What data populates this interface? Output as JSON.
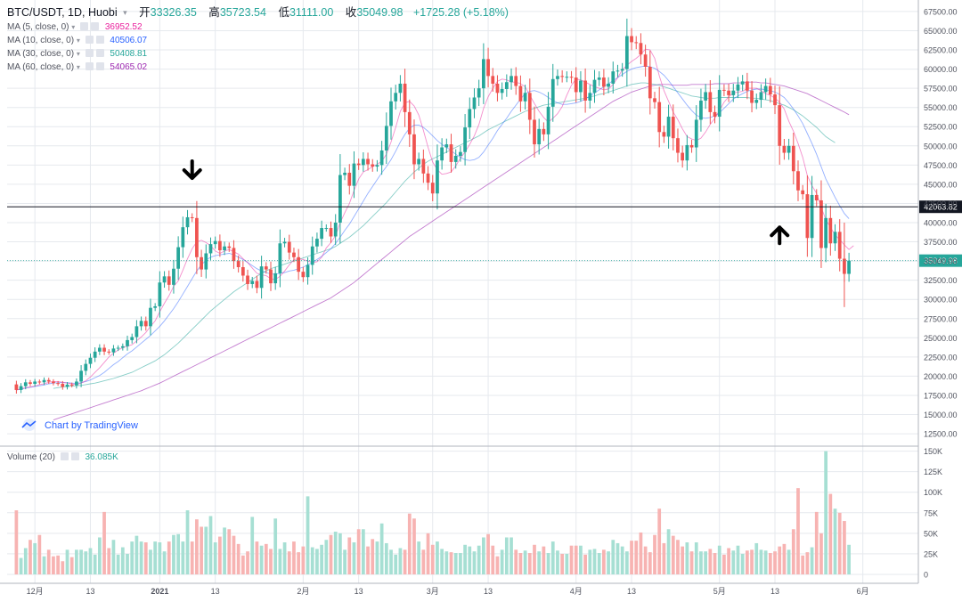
{
  "header": {
    "symbol": "BTC/USDT, 1D, Huobi",
    "open_label": "开",
    "open_value": "33326.35",
    "high_label": "高",
    "high_value": "35723.54",
    "low_label": "低",
    "low_value": "31111.00",
    "close_label": "收",
    "close_value": "35049.98",
    "change": "+1725.28 (+5.18%)"
  },
  "indicators": [
    {
      "label": "MA (5, close, 0)",
      "value": "36952.52",
      "color": "#e91e9c"
    },
    {
      "label": "MA (10, close, 0)",
      "value": "40506.07",
      "color": "#2962ff"
    },
    {
      "label": "MA (30, close, 0)",
      "value": "50408.81",
      "color": "#26a69a"
    },
    {
      "label": "MA (60, close, 0)",
      "value": "54065.02",
      "color": "#9c27b0"
    }
  ],
  "volume_legend": {
    "label": "Volume (20)",
    "value": "36.085K"
  },
  "brand": "Chart by TradingView",
  "colors": {
    "up": "#26a69a",
    "down": "#ef5350",
    "vol_up": "#a6dfd3",
    "vol_down": "#f7b3b2",
    "grid": "#e6e9ee",
    "axis_text": "#50535e"
  },
  "chart_data": {
    "type": "candlestick",
    "title": "BTC/USDT, 1D, Huobi",
    "price_ticks": [
      "67500.00",
      "65000.00",
      "62500.00",
      "60000.00",
      "57500.00",
      "55000.00",
      "52500.00",
      "50000.00",
      "47500.00",
      "45000.00",
      "42500.00",
      "40000.00",
      "37500.00",
      "35000.00",
      "32500.00",
      "30000.00",
      "27500.00",
      "25000.00",
      "22500.00",
      "20000.00",
      "17500.00",
      "15000.00",
      "12500.00"
    ],
    "price_range": [
      11000,
      69000
    ],
    "volume_ticks": [
      "150K",
      "125K",
      "100K",
      "75K",
      "50K",
      "25K",
      "0"
    ],
    "volume_range": [
      0,
      155000
    ],
    "x_ticks": [
      "12月",
      "13",
      "2021",
      "13",
      "2月",
      "13",
      "3月",
      "13",
      "4月",
      "13",
      "5月",
      "13",
      "6月"
    ],
    "x_tick_days": [
      4,
      16,
      31,
      43,
      62,
      74,
      90,
      102,
      121,
      133,
      152,
      164,
      183
    ],
    "day_range": [
      -2,
      195
    ],
    "horizontal_line": {
      "value": 42063.82,
      "label": "42063.82"
    },
    "current_price": {
      "value": 35049.98,
      "label": "35049.98"
    },
    "annotations": [
      {
        "type": "arrow-down",
        "day": 38,
        "price": 48000
      },
      {
        "type": "arrow-up",
        "day": 165,
        "price": 39500
      }
    ],
    "close": [
      18200,
      18700,
      19200,
      19000,
      19300,
      19200,
      19500,
      19300,
      19100,
      19000,
      18600,
      18900,
      18800,
      19300,
      20700,
      21600,
      22400,
      23200,
      23700,
      23200,
      23100,
      23600,
      23700,
      23900,
      24700,
      25100,
      26500,
      27200,
      26500,
      28900,
      29100,
      32200,
      33000,
      31900,
      34000,
      36800,
      39400,
      40700,
      40600,
      35500,
      33900,
      36000,
      37200,
      37600,
      36400,
      36900,
      36700,
      35000,
      34200,
      33100,
      32000,
      32400,
      31500,
      34300,
      33900,
      32100,
      33400,
      37300,
      37500,
      36100,
      35500,
      33600,
      32900,
      34500,
      36900,
      37900,
      39300,
      39300,
      38200,
      40000,
      46200,
      46500,
      44800,
      47700,
      47500,
      48300,
      47600,
      47300,
      47500,
      49400,
      52600,
      55800,
      56900,
      58100,
      54400,
      51500,
      47600,
      48300,
      46400,
      45200,
      43800,
      48100,
      49800,
      50200,
      47900,
      48700,
      49200,
      52400,
      54800,
      56300,
      57500,
      61300,
      59100,
      58100,
      56900,
      57400,
      58300,
      59100,
      57800,
      55800,
      56900,
      53400,
      50200,
      52200,
      51500,
      55100,
      58700,
      59100,
      59000,
      59000,
      58900,
      57000,
      58500,
      55900,
      56900,
      58600,
      58900,
      57700,
      58100,
      59700,
      59800,
      60000,
      64300,
      63500,
      63400,
      61900,
      60300,
      56200,
      55700,
      51800,
      51200,
      53800,
      51000,
      49100,
      48100,
      50100,
      49800,
      53400,
      55900,
      57000,
      54400,
      53800,
      57300,
      57200,
      56600,
      57200,
      58000,
      58400,
      57200,
      55600,
      56000,
      57000,
      57800,
      56700,
      55300,
      50000,
      49100,
      50000,
      46700,
      44200,
      43700,
      38000,
      43600,
      42900,
      36700,
      40600,
      37300,
      38800,
      35300,
      33326,
      35050
    ],
    "volume": [
      78000,
      20000,
      32000,
      42000,
      38000,
      48000,
      22000,
      30000,
      22000,
      23000,
      16000,
      30000,
      21000,
      30000,
      30000,
      28000,
      32000,
      24000,
      45000,
      76000,
      32000,
      42000,
      24000,
      33000,
      25000,
      40000,
      47000,
      40000,
      39000,
      30000,
      40000,
      39000,
      28000,
      40000,
      48000,
      49000,
      40000,
      78000,
      40000,
      67000,
      58000,
      58000,
      71000,
      39000,
      46000,
      57000,
      55000,
      47000,
      37000,
      23000,
      28000,
      70000,
      40000,
      35000,
      37000,
      31000,
      68000,
      31000,
      39000,
      28000,
      40000,
      27000,
      34000,
      95000,
      33000,
      31000,
      36000,
      42000,
      48000,
      52000,
      50000,
      30000,
      45000,
      39000,
      55000,
      55000,
      34000,
      43000,
      40000,
      62000,
      38000,
      30000,
      24000,
      32000,
      30000,
      74000,
      68000,
      40000,
      30000,
      50000,
      36000,
      40000,
      31000,
      28000,
      27000,
      26000,
      26000,
      36000,
      34000,
      28000,
      35000,
      45000,
      49000,
      35000,
      22000,
      30000,
      45000,
      45000,
      30000,
      26000,
      29000,
      26000,
      36000,
      28000,
      34000,
      26000,
      40000,
      29000,
      25000,
      25000,
      35000,
      35000,
      35000,
      24000,
      30000,
      31000,
      26000,
      30000,
      28000,
      42000,
      38000,
      34000,
      28000,
      41000,
      41000,
      51000,
      34000,
      27000,
      48000,
      80000,
      38000,
      55000,
      47000,
      42000,
      34000,
      39000,
      28000,
      39000,
      28000,
      28000,
      31000,
      26000,
      35000,
      24000,
      32000,
      29000,
      35000,
      25000,
      29000,
      30000,
      38000,
      30000,
      29000,
      26000,
      28000,
      34000,
      37000,
      30000,
      55000,
      105000,
      23000,
      27000,
      33000,
      76000,
      50000,
      150000,
      98000,
      80000,
      75000,
      65000,
      36000
    ],
    "ma5": [
      18200,
      18350,
      18500,
      18600,
      18700,
      18900,
      19000,
      19200,
      19300,
      19300,
      19200,
      19100,
      19000,
      18900,
      19100,
      19400,
      19900,
      20500,
      21100,
      21800,
      22500,
      23000,
      23400,
      23700,
      23900,
      24100,
      24600,
      25100,
      25700,
      26500,
      27200,
      28400,
      29500,
      30500,
      31700,
      32400,
      33800,
      35300,
      36600,
      37500,
      37700,
      37400,
      37000,
      36300,
      36000,
      36300,
      36500,
      36200,
      35900,
      35300,
      34800,
      34100,
      33400,
      33200,
      33100,
      32700,
      32600,
      33000,
      33700,
      34500,
      35200,
      35300,
      35200,
      35000,
      34800,
      34900,
      35500,
      36700,
      37400,
      38300,
      40000,
      41300,
      42500,
      44200,
      45700,
      46600,
      46900,
      47300,
      47600,
      48000,
      48900,
      50500,
      52400,
      54500,
      55600,
      55800,
      55200,
      54000,
      52000,
      49800,
      47900,
      46900,
      46300,
      46400,
      46600,
      47400,
      48400,
      49200,
      50200,
      51300,
      52800,
      54900,
      56400,
      57500,
      58400,
      58700,
      58600,
      58300,
      58300,
      58100,
      57700,
      56600,
      55500,
      54500,
      53700,
      53100,
      53600,
      54200,
      55100,
      56600,
      57900,
      58700,
      58600,
      58300,
      58000,
      57700,
      57500,
      57300,
      57400,
      58000,
      58900,
      59900,
      60500,
      61000,
      61400,
      61900,
      62600,
      62500,
      61400,
      59100,
      57200,
      55800,
      54400,
      53400,
      52200,
      51200,
      50900,
      50700,
      51000,
      51800,
      52800,
      53600,
      54600,
      55700,
      56400,
      56900,
      57000,
      57100,
      57500,
      57500,
      57500,
      57200,
      56800,
      56600,
      56200,
      55700,
      54800,
      53200,
      51900,
      50300,
      48500,
      46100,
      44800,
      43800,
      42000,
      40400,
      39400,
      38400,
      37800,
      37100,
      36500,
      37000
    ],
    "ma10": [
      18200,
      18300,
      18450,
      18550,
      18650,
      18750,
      18850,
      19000,
      19100,
      19150,
      19150,
      19150,
      19100,
      19050,
      19150,
      19300,
      19500,
      19800,
      20100,
      20500,
      21000,
      21500,
      21900,
      22400,
      22900,
      23300,
      23800,
      24300,
      24800,
      25300,
      25900,
      26500,
      27200,
      28000,
      28800,
      29700,
      30700,
      31700,
      32700,
      33700,
      34500,
      35100,
      35500,
      35700,
      35800,
      35900,
      36000,
      35800,
      35500,
      35200,
      34800,
      34400,
      34000,
      33700,
      33500,
      33300,
      33300,
      33400,
      33500,
      33700,
      33800,
      34000,
      34200,
      34500,
      34800,
      35200,
      35600,
      36100,
      36600,
      37300,
      38100,
      39000,
      39800,
      40800,
      41800,
      42800,
      43800,
      44700,
      45600,
      46500,
      47300,
      48200,
      49300,
      50500,
      51500,
      52300,
      52700,
      52700,
      52400,
      51900,
      51300,
      50700,
      50200,
      49800,
      49400,
      48900,
      48500,
      48200,
      48100,
      48200,
      48500,
      49200,
      50100,
      51000,
      52000,
      52800,
      53600,
      54500,
      55300,
      56100,
      56800,
      57100,
      57200,
      57000,
      56700,
      56300,
      55900,
      55600,
      55400,
      55400,
      55500,
      55600,
      55800,
      56100,
      56500,
      56900,
      57300,
      57700,
      58100,
      58500,
      58900,
      59300,
      59700,
      60000,
      60200,
      60300,
      60400,
      60300,
      60100,
      59700,
      59200,
      58500,
      57700,
      56900,
      56100,
      55300,
      54600,
      54000,
      53700,
      53600,
      53700,
      53900,
      54300,
      54900,
      55500,
      56100,
      56500,
      56800,
      57100,
      57300,
      57400,
      57400,
      57300,
      57200,
      57000,
      56700,
      56300,
      55600,
      54800,
      53900,
      52900,
      51600,
      50300,
      48900,
      47300,
      45700,
      44500,
      43300,
      42200,
      41200,
      40506
    ],
    "ma30": [
      null,
      null,
      null,
      null,
      null,
      null,
      null,
      null,
      18400,
      18500,
      18600,
      18650,
      18700,
      18750,
      18800,
      18900,
      19000,
      19100,
      19250,
      19400,
      19550,
      19700,
      19900,
      20100,
      20300,
      20500,
      20800,
      21100,
      21400,
      21700,
      22000,
      22400,
      22800,
      23300,
      23800,
      24300,
      24900,
      25500,
      26100,
      26700,
      27300,
      27900,
      28500,
      29000,
      29500,
      30000,
      30500,
      31000,
      31400,
      31800,
      32200,
      32600,
      33000,
      33400,
      33700,
      34000,
      34200,
      34400,
      34600,
      34800,
      35000,
      35200,
      35400,
      35600,
      35800,
      36000,
      36200,
      36400,
      36600,
      36900,
      37300,
      37700,
      38100,
      38600,
      39100,
      39600,
      40200,
      40800,
      41400,
      42000,
      42600,
      43300,
      44000,
      44700,
      45400,
      46000,
      46600,
      47100,
      47600,
      48000,
      48300,
      48600,
      48900,
      49200,
      49500,
      49800,
      50100,
      50400,
      50700,
      51000,
      51300,
      51700,
      52100,
      52400,
      52700,
      53000,
      53300,
      53600,
      53900,
      54200,
      54500,
      54700,
      54900,
      55100,
      55300,
      55400,
      55500,
      55600,
      55700,
      55800,
      55900,
      56000,
      56100,
      56200,
      56400,
      56500,
      56700,
      56800,
      57000,
      57200,
      57400,
      57600,
      57800,
      58000,
      58100,
      58200,
      58200,
      58100,
      58000,
      57900,
      57700,
      57500,
      57300,
      57100,
      56900,
      56700,
      56500,
      56400,
      56300,
      56200,
      56200,
      56200,
      56300,
      56300,
      56300,
      56300,
      56300,
      56300,
      56300,
      56200,
      56200,
      56100,
      56000,
      55900,
      55700,
      55500,
      55300,
      55000,
      54700,
      54300,
      53900,
      53400,
      52900,
      52400,
      51800,
      51200,
      50800,
      50408
    ],
    "ma60": [
      null,
      null,
      null,
      null,
      null,
      null,
      null,
      null,
      14300,
      14500,
      14700,
      14900,
      15100,
      15300,
      15500,
      15700,
      15900,
      16100,
      16300,
      16500,
      16700,
      16900,
      17100,
      17300,
      17500,
      17700,
      17900,
      18100,
      18350,
      18600,
      18850,
      19100,
      19400,
      19700,
      20000,
      20300,
      20600,
      20900,
      21200,
      21500,
      21800,
      22100,
      22400,
      22700,
      23000,
      23300,
      23600,
      23900,
      24200,
      24500,
      24800,
      25100,
      25400,
      25700,
      26000,
      26300,
      26600,
      26900,
      27200,
      27500,
      27800,
      28100,
      28400,
      28700,
      29000,
      29300,
      29600,
      29900,
      30200,
      30600,
      31000,
      31400,
      31800,
      32200,
      32700,
      33200,
      33700,
      34200,
      34700,
      35200,
      35700,
      36200,
      36700,
      37200,
      37700,
      38200,
      38600,
      39000,
      39400,
      39800,
      40200,
      40600,
      41000,
      41400,
      41800,
      42200,
      42600,
      43000,
      43400,
      43800,
      44200,
      44600,
      45000,
      45400,
      45800,
      46200,
      46600,
      47000,
      47400,
      47800,
      48200,
      48600,
      49000,
      49400,
      49800,
      50200,
      50600,
      51000,
      51400,
      51800,
      52200,
      52600,
      53000,
      53400,
      53800,
      54200,
      54600,
      55000,
      55400,
      55800,
      56100,
      56400,
      56700,
      57000,
      57200,
      57400,
      57600,
      57800,
      57900,
      58000,
      58000,
      58000,
      57900,
      57900,
      57900,
      57900,
      58000,
      58000,
      58000,
      58000,
      58000,
      58100,
      58100,
      58100,
      58100,
      58200,
      58200,
      58200,
      58300,
      58300,
      58300,
      58200,
      58200,
      58100,
      58000,
      57900,
      57800,
      57600,
      57400,
      57200,
      57000,
      56800,
      56500,
      56200,
      55900,
      55600,
      55300,
      55000,
      54700,
      54400,
      54065
    ]
  }
}
